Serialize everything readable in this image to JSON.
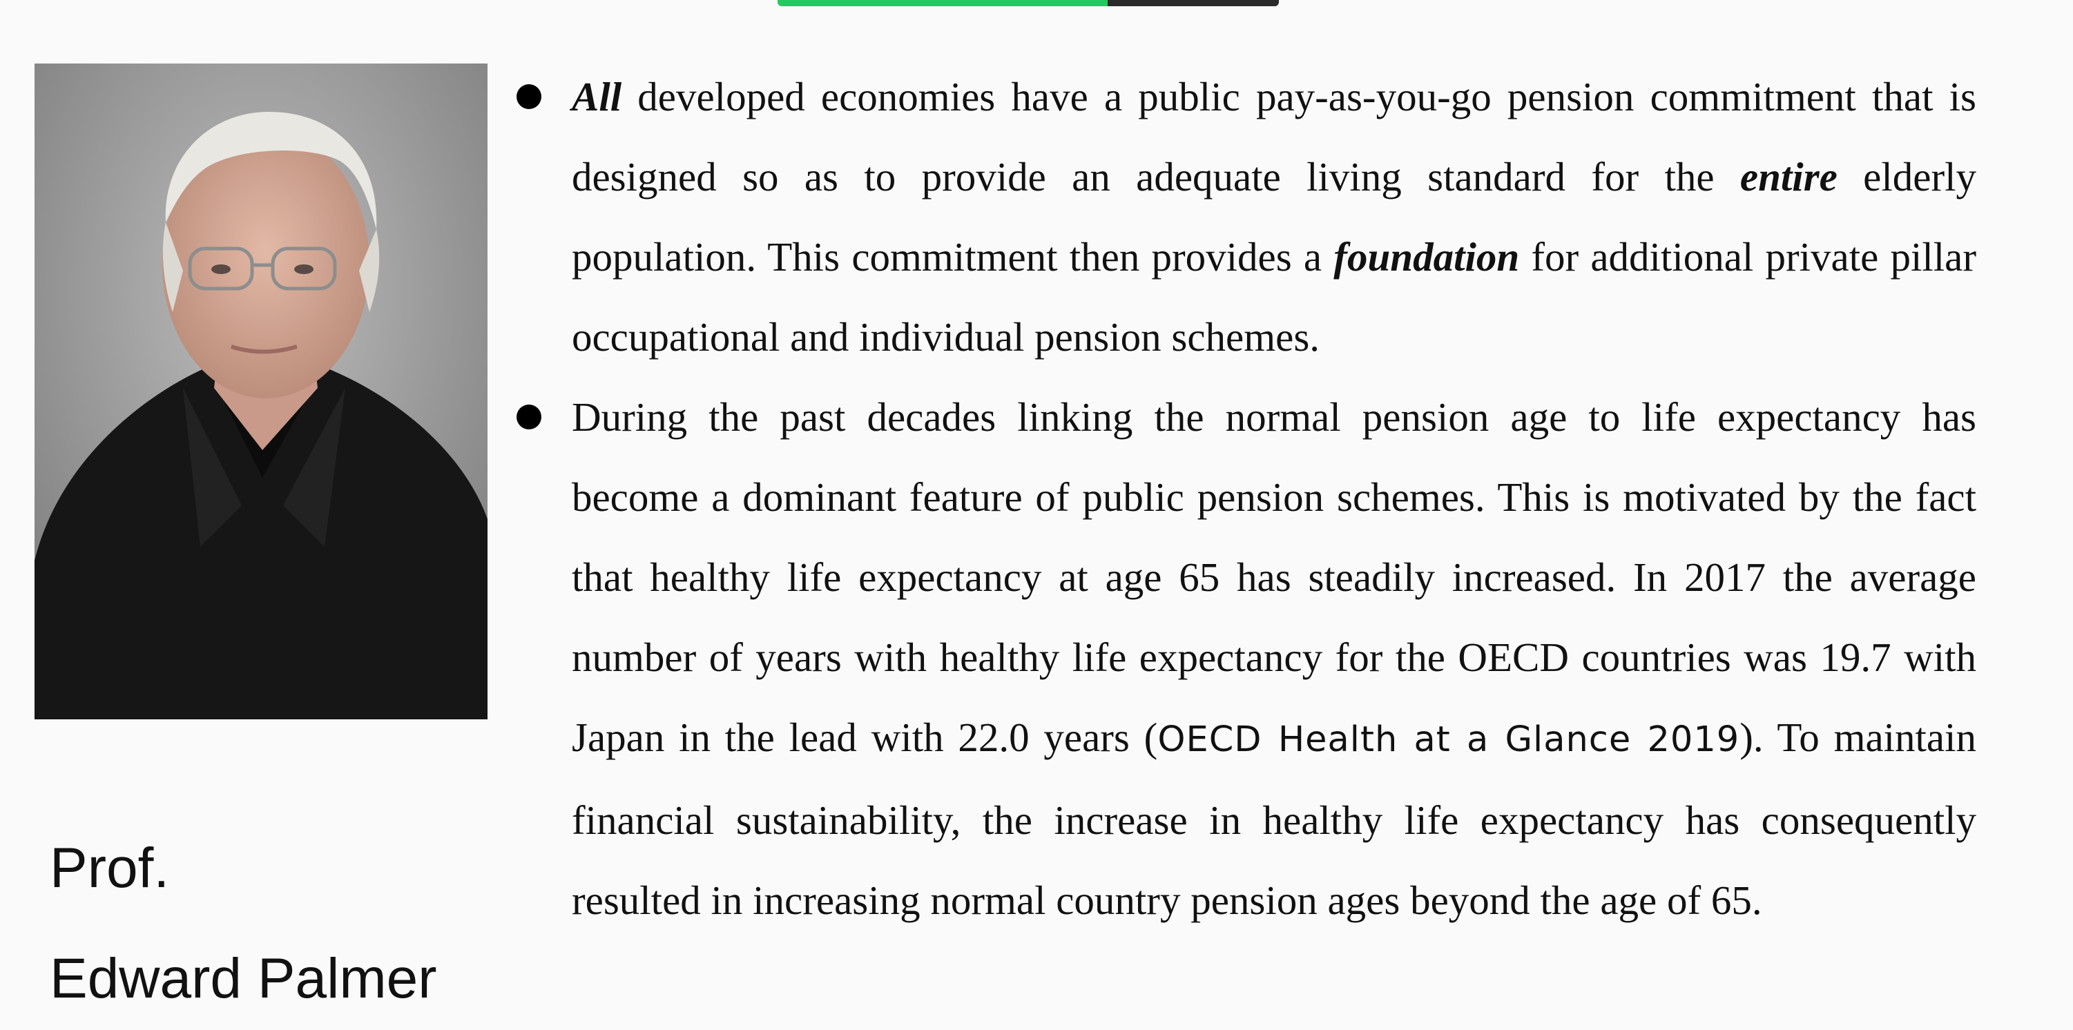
{
  "speaker": {
    "title": "Prof.",
    "name": "Edward Palmer"
  },
  "bullets": [
    {
      "parts": [
        {
          "text": "All",
          "style": "bold-italic"
        },
        {
          "text": " developed economies have a public pay-as-you-go pension commitment that is designed so as to provide an adequate living standard for the ",
          "style": "normal"
        },
        {
          "text": "entire",
          "style": "bold-italic"
        },
        {
          "text": " elderly population. This commitment then provides a ",
          "style": "normal"
        },
        {
          "text": "foundation",
          "style": "bold-italic"
        },
        {
          "text": " for additional private pillar occupational and individual pension schemes.",
          "style": "normal"
        }
      ]
    },
    {
      "parts": [
        {
          "text": "During the past decades linking the normal pension age to life expectancy has become a dominant feature of public pension schemes. This is motivated by the fact that healthy life expectancy at age 65 has steadily increased.  In 2017 the average number of years with healthy life expectancy for the OECD countries was 19.7 with Japan in the lead with 22.0 years (",
          "style": "normal"
        },
        {
          "text": "OECD Health at a Glance 2019",
          "style": "sans"
        },
        {
          "text": "). To maintain financial sustainability, the increase in healthy life expectancy has consequently resulted in increasing normal country pension ages beyond the age of 65.",
          "style": "normal"
        }
      ]
    }
  ],
  "colors": {
    "background": "#fafafa",
    "share_bar_active": "#27c95a",
    "share_bar_rest": "#2a2a2a"
  }
}
